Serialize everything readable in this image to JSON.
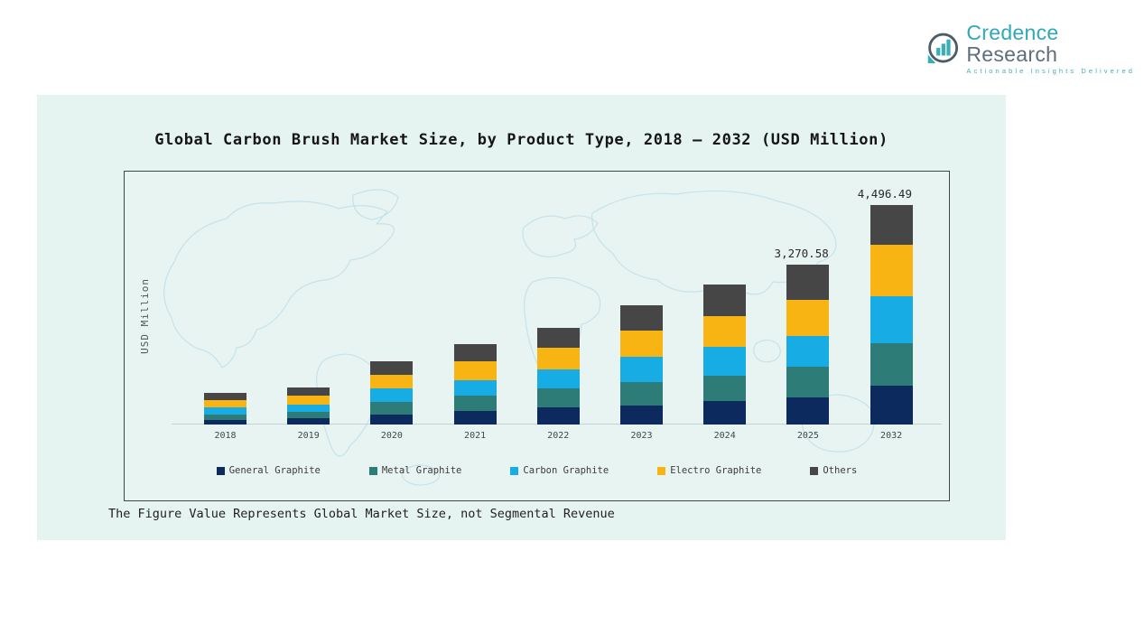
{
  "brand": {
    "name_primary": "Credence",
    "name_secondary": "Research",
    "tagline": "Actionable Insights Delivered",
    "colors": {
      "primary": "#2fa9b3",
      "secondary": "#5e6e7d",
      "icon_ring": "#4d5c66",
      "icon_bars": "#38afb7"
    }
  },
  "chart_data": {
    "type": "bar",
    "stacked": true,
    "title": "Global Carbon Brush Market Size, by Product Type, 2018 – 2032 (USD Million)",
    "xlabel": "",
    "ylabel": "USD Million",
    "categories": [
      "2018",
      "2019",
      "2020",
      "2021",
      "2022",
      "2023",
      "2024",
      "2025",
      "2032"
    ],
    "series": [
      {
        "name": "General Graphite",
        "color": "#0d2a5e",
        "values": [
          88,
          129,
          206,
          284,
          350,
          398,
          481,
          558,
          791
        ]
      },
      {
        "name": "Metal Graphite",
        "color": "#2e7c78",
        "values": [
          118,
          129,
          259,
          301,
          398,
          481,
          527,
          620,
          876
        ]
      },
      {
        "name": "Carbon Graphite",
        "color": "#17ade4",
        "values": [
          140,
          155,
          284,
          330,
          377,
          501,
          583,
          629,
          969
        ]
      },
      {
        "name": "Electro Graphite",
        "color": "#f7b412",
        "values": [
          146,
          181,
          268,
          377,
          440,
          543,
          636,
          755,
          1042
        ]
      },
      {
        "name": "Others",
        "color": "#464646",
        "values": [
          152,
          155,
          274,
          363,
          423,
          516,
          642,
          708.58,
          818.49
        ]
      }
    ],
    "total_labels": [
      "",
      "",
      "",
      "",
      "",
      "",
      "",
      "3,270.58",
      "4,496.49"
    ],
    "totals": [
      644,
      749,
      1291,
      1655,
      1988,
      2439,
      2869,
      3270.58,
      4496.49
    ],
    "legend_position": "bottom",
    "grid": false,
    "value_axis_ticks": "none",
    "background_watermark": "world-map"
  },
  "footnote": "The Figure Value Represents Global Market Size, not Segmental Revenue"
}
